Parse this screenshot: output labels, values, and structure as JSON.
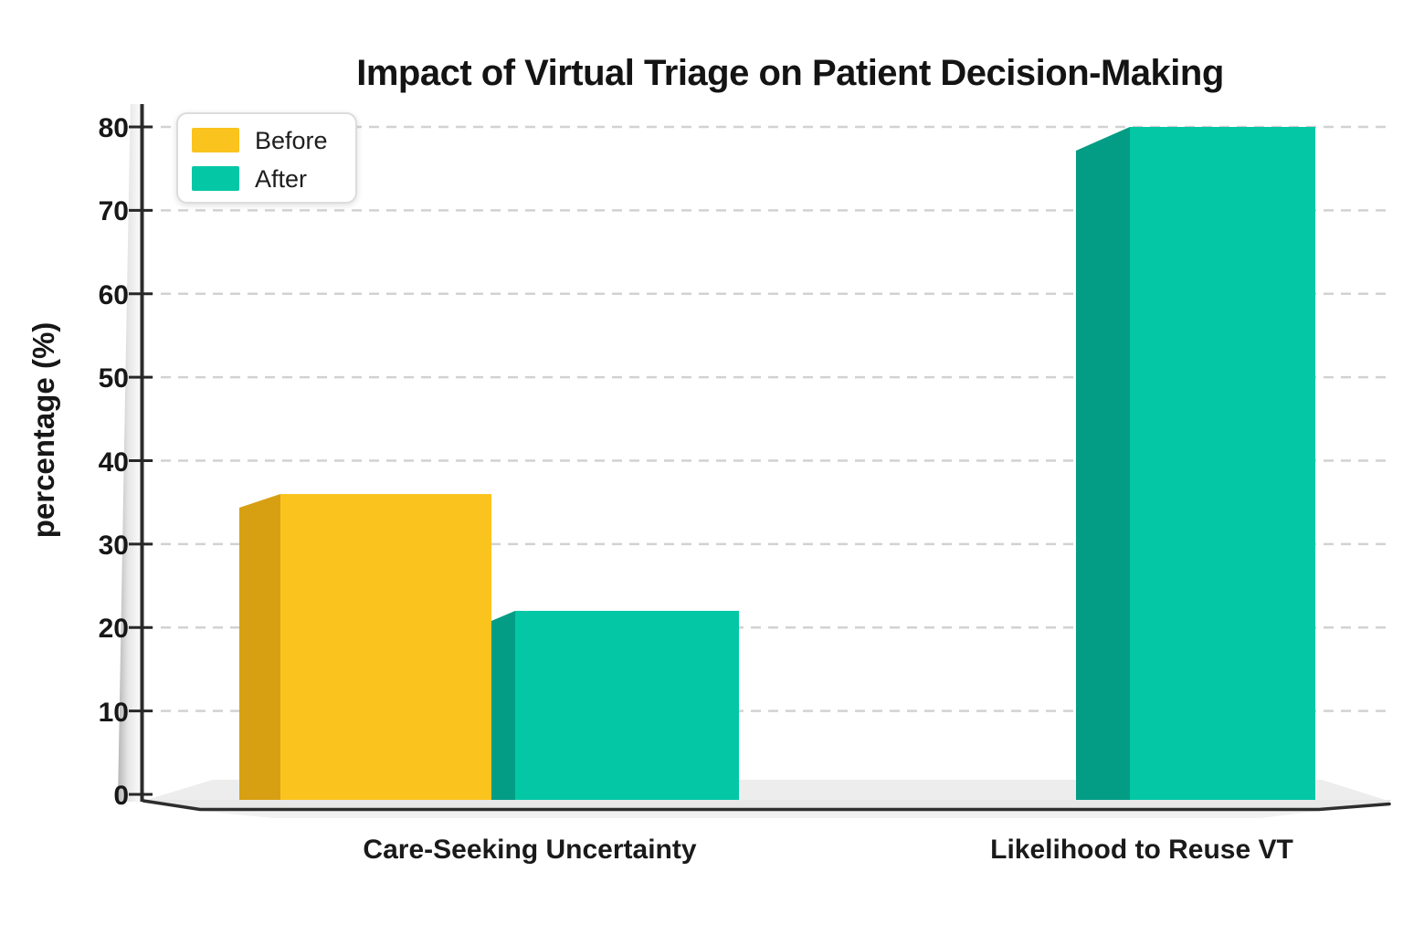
{
  "title": "Impact of Virtual Triage on Patient Decision-Making",
  "legend": {
    "items": [
      {
        "label": "Before",
        "color": "#FBC31D"
      },
      {
        "label": "After",
        "color": "#03C7A5"
      }
    ]
  },
  "chart_data": {
    "type": "bar",
    "style": "pseudo-3d",
    "title": "Impact of Virtual Triage on Patient Decision-Making",
    "xlabel": "",
    "ylabel": "percentage (%)",
    "categories": [
      "Care-Seeking Uncertainty",
      "Likelihood to Reuse VT"
    ],
    "series": [
      {
        "name": "Before",
        "color": "#FBC31D",
        "side_color": "#D7A013",
        "values": [
          36,
          null
        ]
      },
      {
        "name": "After",
        "color": "#03C7A5",
        "side_color": "#029D84",
        "values": [
          22,
          80
        ]
      }
    ],
    "yticks": [
      0,
      10,
      20,
      30,
      40,
      50,
      60,
      70,
      80
    ],
    "ylim": [
      0,
      80
    ],
    "grid": true,
    "gridline_style": "dashed",
    "legend_position": "upper left",
    "background": "#ffffff"
  },
  "colors": {
    "axis": "#2c2c2c",
    "gridline": "#d2d2d2",
    "floor": "#ededed",
    "floor_edge": "#2d2d2d",
    "text": "#151515"
  }
}
